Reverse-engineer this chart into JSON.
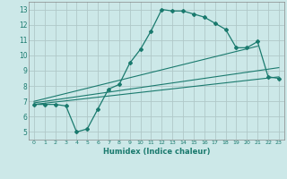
{
  "xlabel": "Humidex (Indice chaleur)",
  "xlim": [
    -0.5,
    23.5
  ],
  "ylim": [
    4.5,
    13.5
  ],
  "xticks": [
    0,
    1,
    2,
    3,
    4,
    5,
    6,
    7,
    8,
    9,
    10,
    11,
    12,
    13,
    14,
    15,
    16,
    17,
    18,
    19,
    20,
    21,
    22,
    23
  ],
  "yticks": [
    5,
    6,
    7,
    8,
    9,
    10,
    11,
    12,
    13
  ],
  "background_color": "#cce8e8",
  "grid_color": "#b0c8c8",
  "line_color": "#1a7a6e",
  "line1_x": [
    0,
    1,
    2,
    3,
    4,
    5,
    6,
    7,
    8,
    9,
    10,
    11,
    12,
    13,
    14,
    15,
    16,
    17,
    18,
    19,
    20,
    21,
    22,
    23
  ],
  "line1_y": [
    6.8,
    6.8,
    6.8,
    6.7,
    5.0,
    5.2,
    6.5,
    7.8,
    8.1,
    9.5,
    10.4,
    11.6,
    13.0,
    12.9,
    12.9,
    12.7,
    12.5,
    12.1,
    11.7,
    10.5,
    10.5,
    10.9,
    8.6,
    8.5
  ],
  "line2_x": [
    0,
    23
  ],
  "line2_y": [
    6.8,
    8.6
  ],
  "line3_x": [
    0,
    23
  ],
  "line3_y": [
    6.9,
    9.2
  ],
  "line4_x": [
    0,
    21
  ],
  "line4_y": [
    7.0,
    10.6
  ]
}
